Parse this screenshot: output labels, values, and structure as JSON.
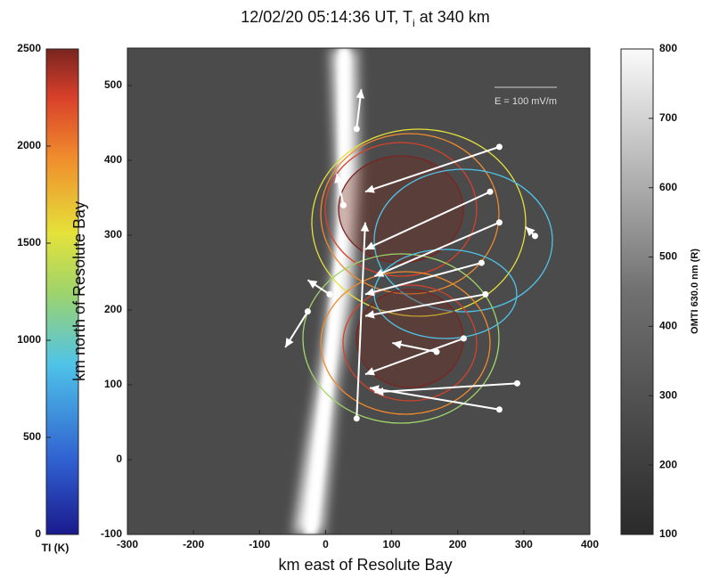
{
  "chart_data": {
    "type": "vector",
    "title_parts": [
      "12/02/20 05:14:36 UT, T",
      "i",
      " at 340 km"
    ],
    "x_label": "km east of Resolute Bay",
    "y_label": "km north of Resolute Bay",
    "annotation": "E = 100 mV/m",
    "xlim": [
      -300,
      400
    ],
    "ylim": [
      -100,
      550
    ],
    "xticks": [
      -300,
      -200,
      -100,
      0,
      100,
      200,
      300,
      400
    ],
    "yticks": [
      -100,
      0,
      100,
      200,
      300,
      400,
      500
    ],
    "vectors": {
      "color": "#ffffff",
      "x": [
        263,
        249,
        263,
        236,
        242,
        209,
        290,
        263,
        47,
        27,
        -27,
        47,
        317,
        168,
        6
      ],
      "y": [
        418,
        358,
        317,
        263,
        221,
        162,
        102,
        67,
        55,
        340,
        198,
        442,
        299,
        144,
        221
      ],
      "x_end": [
        60,
        60,
        74,
        60,
        60,
        60,
        74,
        67,
        60,
        17,
        -61,
        54,
        303,
        101,
        -27
      ],
      "y_end": [
        358,
        281,
        245,
        221,
        192,
        114,
        90,
        96,
        317,
        382,
        150,
        495,
        311,
        156,
        240
      ]
    },
    "ti_colorbar": {
      "label": "TI (K)",
      "lim": [
        0,
        2500
      ],
      "ticks": [
        0,
        500,
        1000,
        1500,
        2000,
        2500
      ]
    },
    "omti_colorbar": {
      "label": "OMTI 630.0 nm (R)",
      "lim": [
        100,
        800
      ],
      "ticks": [
        100,
        200,
        300,
        400,
        500,
        600,
        700,
        800
      ]
    }
  }
}
